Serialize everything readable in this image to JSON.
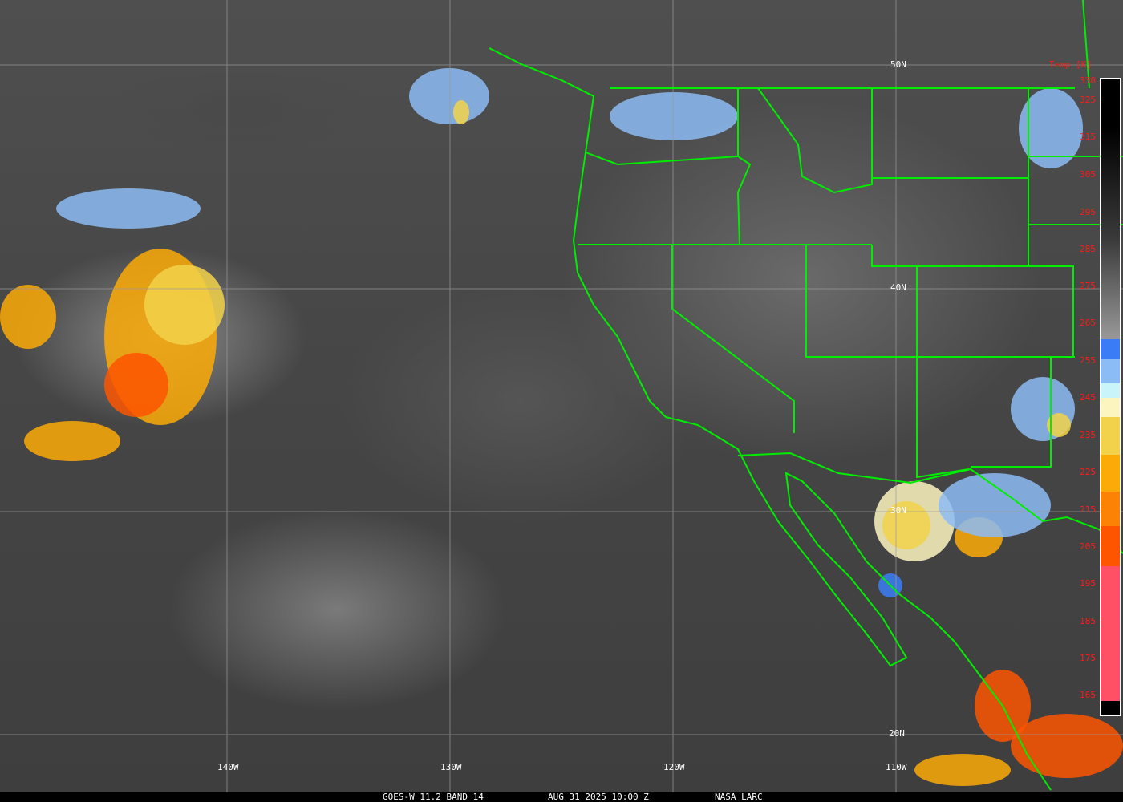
{
  "map": {
    "latitude_labels": [
      "50N",
      "40N",
      "30N",
      "20N"
    ],
    "longitude_labels": [
      "140W",
      "130W",
      "120W",
      "110W"
    ],
    "border_color": "#00ee00",
    "grid_color": "#9a9a9a"
  },
  "colorbar": {
    "title": "Temp [K]",
    "ticks": [
      "330",
      "325",
      "315",
      "305",
      "295",
      "285",
      "275",
      "265",
      "255",
      "245",
      "235",
      "225",
      "215",
      "205",
      "195",
      "185",
      "175",
      "165"
    ],
    "label_color": "#ff1a1a",
    "colors": {
      "cold_blue": "#3a7cf5",
      "light_blue": "#8cbcf5",
      "pale_cyan": "#c8f4fa",
      "pale_yellow": "#fdf5c0",
      "yellow": "#f2d24a",
      "orange": "#fcaa08",
      "dark_orange": "#fb8205",
      "red_orange": "#fd5500",
      "pink": "#ff5065"
    }
  },
  "footer": {
    "satellite": "GOES-W 11.2 BAND 14",
    "datetime": "AUG 31 2025 10:00 Z",
    "source": "NASA LARC"
  }
}
